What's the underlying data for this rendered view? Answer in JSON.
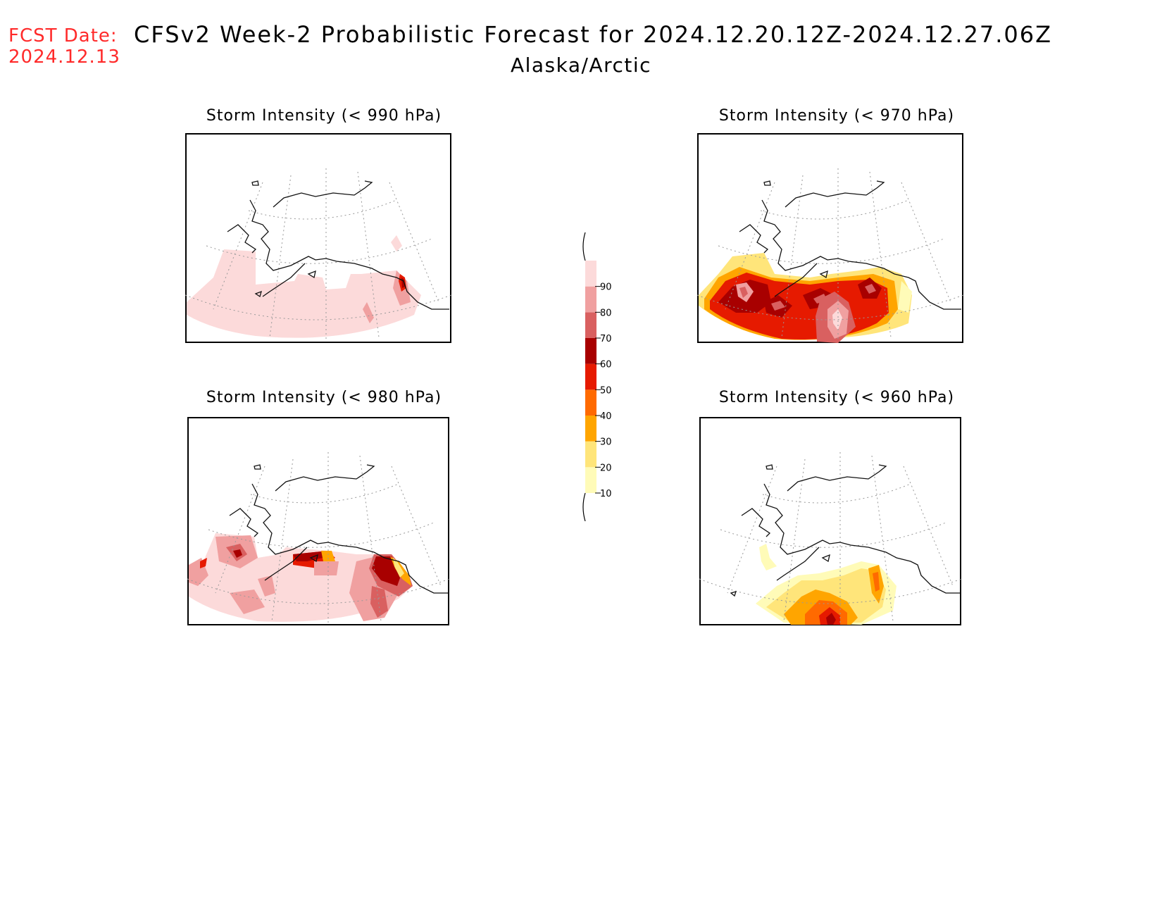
{
  "header": {
    "fcst_label": "FCST Date:",
    "fcst_date": "2024.12.13",
    "title": "CFSv2 Week-2 Probabilistic Forecast for 2024.12.20.12Z-2024.12.27.06Z",
    "region": "Alaska/Arctic"
  },
  "panels": [
    {
      "id": "p990",
      "title": "Storm Intensity (< 990 hPa)"
    },
    {
      "id": "p970",
      "title": "Storm Intensity (< 970 hPa)"
    },
    {
      "id": "p980",
      "title": "Storm Intensity (< 980 hPa)"
    },
    {
      "id": "p960",
      "title": "Storm Intensity (< 960 hPa)"
    }
  ],
  "legend": {
    "levels": [
      "10",
      "20",
      "30",
      "40",
      "50",
      "60",
      "70",
      "80",
      "90"
    ],
    "colors": [
      "#fffbb8",
      "#ffe57a",
      "#ffa500",
      "#ff6a00",
      "#e61a00",
      "#a80000",
      "#d96060",
      "#f0a0a0",
      "#fcdada"
    ]
  }
}
